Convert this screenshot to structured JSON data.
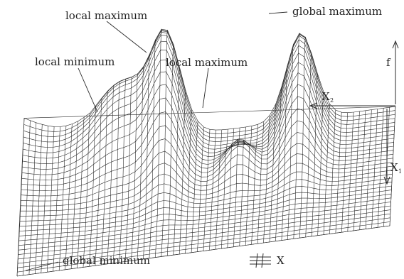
{
  "annotations": {
    "local_maximum_left": "local maximum",
    "local_minimum": "local minimum",
    "local_maximum_center": "local maximum",
    "global_maximum": "global maximum",
    "global_minimum": "global minimum"
  },
  "axes": {
    "f": "f",
    "x2": "X",
    "x2_sub": "2",
    "x1": "X",
    "x1_sub": "1",
    "legend_x": "X"
  },
  "colors": {
    "line": "#2a2a2a",
    "background": "#ffffff"
  },
  "surface": {
    "rows": 30,
    "cols": 62,
    "depth_scale": 0.24,
    "peaks": [
      {
        "type": "global maximum",
        "u": 0.745,
        "v": 0.84,
        "height": 150,
        "su": 0.055,
        "sv": 0.34
      },
      {
        "type": "local maximum",
        "u": 0.385,
        "v": 0.82,
        "height": 145,
        "su": 0.055,
        "sv": 0.36
      },
      {
        "type": "local maximum",
        "u": 0.585,
        "v": 0.62,
        "height": 58,
        "su": 0.05,
        "sv": 0.14
      },
      {
        "type": "local minimum",
        "u": 0.27,
        "v": 0.88,
        "height": 105,
        "su": 0.12,
        "sv": 0.3
      }
    ]
  }
}
